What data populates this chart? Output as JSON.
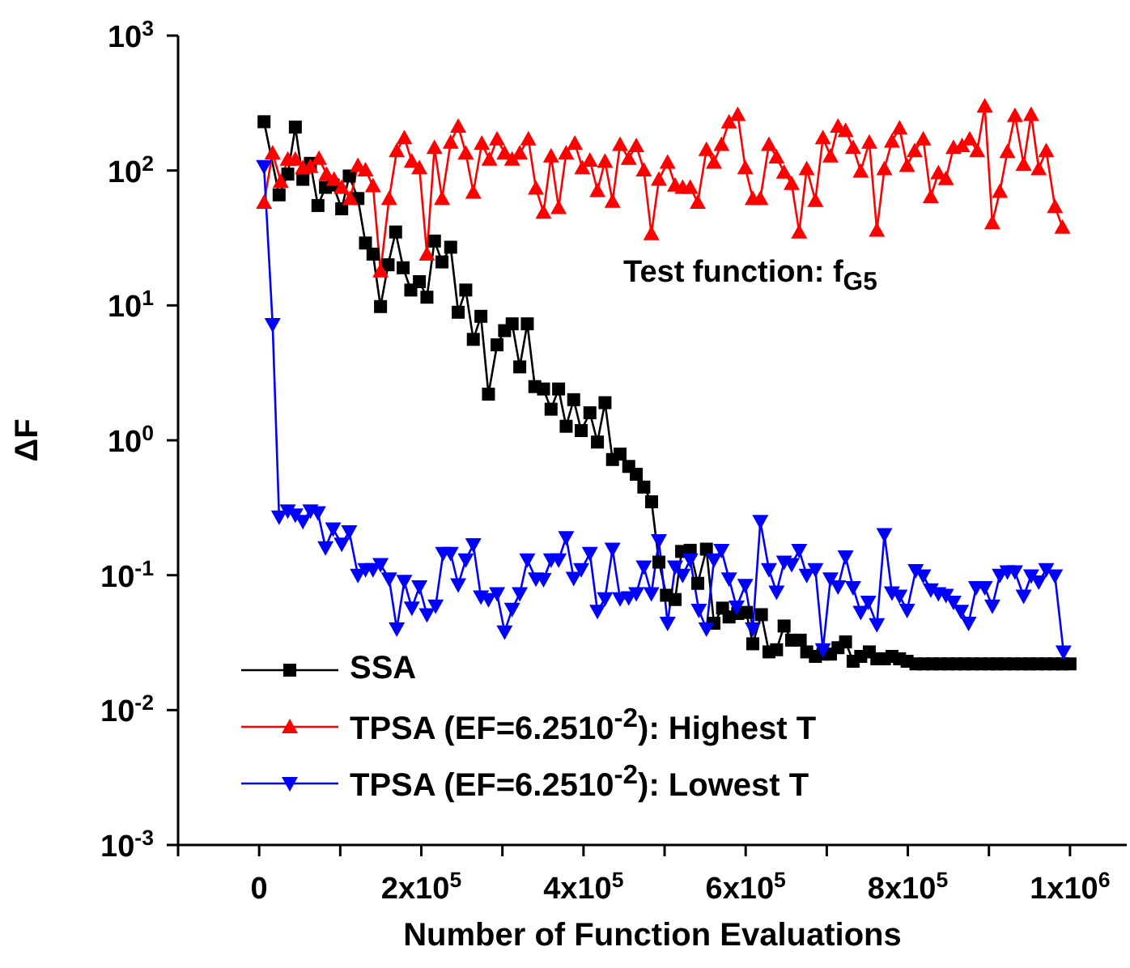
{
  "chart_data": {
    "type": "line",
    "xlabel": "Number of Function Evaluations",
    "ylabel": "ΔF",
    "annotations": [
      "Test function: f$_{G5}$"
    ],
    "log": "y",
    "legend": "bottom left",
    "xlim": [
      -100000,
      1070000
    ],
    "xticks": [
      {
        "value": -100000,
        "label": null
      },
      0,
      {
        "value": 100000,
        "label": null
      },
      {
        "value": 200000,
        "label": "2x10$^{5}$"
      },
      {
        "value": 300000,
        "label": null
      },
      {
        "value": 400000,
        "label": "4x10$^{5}$"
      },
      {
        "value": 500000,
        "label": null
      },
      {
        "value": 600000,
        "label": "6x10$^{5}$"
      },
      {
        "value": 700000,
        "label": null
      },
      {
        "value": 800000,
        "label": "8x10$^{5}$"
      },
      {
        "value": 900000,
        "label": null
      },
      {
        "value": 1000000,
        "label": "1x10$^{6}$"
      }
    ],
    "ylim": [
      0.001,
      1000
    ],
    "yticks": [
      {
        "value": 0.001,
        "label": "10$^{-3}$"
      },
      {
        "value": 0.01,
        "label": "10$^{-2}$"
      },
      {
        "value": 0.1,
        "label": "10$^{-1}$"
      },
      {
        "value": 1,
        "label": "10$^{0}$"
      },
      {
        "value": 10,
        "label": "10$^{1}$"
      },
      {
        "value": 100,
        "label": "10$^{2}$"
      },
      {
        "value": 1000,
        "label": "10$^{3}$"
      }
    ],
    "series": [
      {
        "name": "SSA",
        "color": "#000000",
        "marker": "square",
        "x": [
          6000,
          24600,
          35300,
          44600,
          53900,
          63200,
          72500,
          81800,
          91200,
          101800,
          111100,
          121800,
          131100,
          140400,
          149700,
          159000,
          168300,
          177600,
          187000,
          197600,
          206900,
          216200,
          225500,
          236200,
          245500,
          254800,
          264100,
          273500,
          282800,
          293400,
          302700,
          312000,
          321400,
          330700,
          340000,
          350700,
          360000,
          369300,
          378600,
          387900,
          397200,
          407900,
          417200,
          426500,
          435800,
          445100,
          455800,
          465100,
          474400,
          484000,
          493000,
          502300,
          513000,
          521000,
          531600,
          540900,
          551600,
          560900,
          571500,
          579500,
          590200,
          600800,
          608800,
          619400,
          628700,
          638100,
          647400,
          656700,
          667300,
          675300,
          686000,
          695300,
          704600,
          713900,
          723200,
          732500,
          741900,
          752500,
          761800,
          771100,
          780400,
          789800,
          799100,
          810000,
          820000,
          830000,
          840000,
          850000,
          860000,
          870000,
          880000,
          890000,
          900000,
          910000,
          920000,
          930000,
          940000,
          950000,
          960000,
          970000,
          980000,
          990000,
          1000000
        ],
        "values": [
          230,
          66,
          94,
          210,
          86,
          113,
          55,
          75,
          78,
          52,
          91,
          62,
          29,
          24,
          9.8,
          20,
          35,
          19,
          13,
          15,
          11.5,
          30,
          21,
          27,
          8.9,
          13,
          5.6,
          8.3,
          2.2,
          5.1,
          6.5,
          7.3,
          3.5,
          7.3,
          2.5,
          2.4,
          1.7,
          2.4,
          1.27,
          2.0,
          1.18,
          1.6,
          0.97,
          1.9,
          0.72,
          0.79,
          0.64,
          0.56,
          0.45,
          0.35,
          0.125,
          0.071,
          0.066,
          0.15,
          0.153,
          0.087,
          0.156,
          0.044,
          0.057,
          0.049,
          0.052,
          0.053,
          0.031,
          0.051,
          0.027,
          0.028,
          0.042,
          0.033,
          0.033,
          0.027,
          0.025,
          0.026,
          0.026,
          0.029,
          0.032,
          0.023,
          0.025,
          0.027,
          0.024,
          0.024,
          0.025,
          0.024,
          0.023,
          0.022,
          0.022,
          0.022,
          0.022,
          0.022,
          0.022,
          0.022,
          0.022,
          0.022,
          0.022,
          0.022,
          0.022,
          0.022,
          0.022,
          0.022,
          0.022,
          0.022,
          0.022,
          0.022,
          0.022
        ]
      },
      {
        "name": "TPSA (EF=6.2510$^{-2}$): Highest T",
        "color": "#ff0000",
        "marker": "triangle",
        "x": [
          6000,
          16600,
          26600,
          35300,
          44600,
          53900,
          63200,
          73800,
          83100,
          92400,
          101800,
          112400,
          121800,
          131100,
          140400,
          149700,
          160300,
          169700,
          179000,
          188300,
          197600,
          206900,
          216200,
          225500,
          236200,
          245500,
          254800,
          264100,
          274600,
          284000,
          293400,
          302700,
          312000,
          321400,
          332000,
          341300,
          350700,
          360000,
          369300,
          378600,
          389300,
          398600,
          407900,
          417200,
          426500,
          435800,
          445100,
          455800,
          465100,
          474400,
          483700,
          493000,
          503700,
          513000,
          522300,
          531600,
          540900,
          551600,
          560900,
          570200,
          579500,
          590200,
          599500,
          608800,
          618100,
          628700,
          638100,
          647400,
          656700,
          666000,
          675300,
          686000,
          695300,
          704600,
          713900,
          723200,
          732500,
          741900,
          752500,
          761800,
          771100,
          780400,
          789800,
          799100,
          808400,
          819000,
          828300,
          837700,
          847000,
          856300,
          866900,
          876300,
          885600,
          894900,
          904200,
          913500,
          922800,
          932100,
          942800,
          952100,
          961400,
          970700,
          981400,
          990700
        ],
        "values": [
          58,
          135,
          83,
          121,
          121,
          105,
          107,
          123,
          94,
          86,
          75,
          62,
          109,
          101,
          77,
          18,
          62,
          140,
          175,
          117,
          105,
          24,
          148,
          62,
          162,
          213,
          135,
          69,
          159,
          121,
          171,
          135,
          121,
          135,
          171,
          74,
          49,
          128,
          53,
          135,
          159,
          105,
          119,
          71,
          117,
          59,
          156,
          123,
          153,
          101,
          34,
          86,
          115,
          78,
          75,
          75,
          58,
          143,
          115,
          156,
          229,
          260,
          105,
          62,
          62,
          156,
          126,
          97,
          80,
          35,
          103,
          60,
          175,
          128,
          213,
          198,
          148,
          99,
          162,
          36,
          103,
          165,
          206,
          109,
          140,
          171,
          64,
          96,
          87,
          148,
          153,
          171,
          140,
          301,
          41,
          70,
          138,
          256,
          111,
          260,
          103,
          140,
          54,
          38
        ]
      },
      {
        "name": "TPSA (EF=6.2510$^{-2}$): Lowest T",
        "color": "#0000ff",
        "marker": "triangle-down",
        "x": [
          6000,
          16600,
          24600,
          35300,
          44600,
          53900,
          63200,
          72500,
          81800,
          91200,
          101800,
          111100,
          121800,
          131100,
          140400,
          149700,
          160300,
          169700,
          179000,
          188300,
          197600,
          206900,
          217600,
          226900,
          236200,
          245500,
          254800,
          264100,
          273500,
          282800,
          293400,
          302700,
          312000,
          321400,
          330700,
          341300,
          350700,
          360000,
          369300,
          378600,
          387900,
          397200,
          407900,
          417200,
          426500,
          435800,
          445100,
          455800,
          465100,
          474400,
          483700,
          493000,
          503700,
          513000,
          522300,
          531600,
          542300,
          551600,
          560900,
          570200,
          579500,
          588800,
          599500,
          608800,
          618100,
          628700,
          638100,
          647400,
          656700,
          666000,
          675300,
          686000,
          695300,
          704600,
          713900,
          723200,
          732500,
          741900,
          751200,
          761800,
          771100,
          780400,
          789800,
          799100,
          809700,
          819000,
          828300,
          837700,
          847000,
          856300,
          865600,
          874900,
          884200,
          894900,
          904200,
          913500,
          922800,
          932100,
          942800,
          952100,
          961400,
          970700,
          981400,
          992000
        ],
        "values": [
          107,
          7.2,
          0.27,
          0.3,
          0.28,
          0.25,
          0.3,
          0.29,
          0.16,
          0.22,
          0.17,
          0.21,
          0.1,
          0.11,
          0.11,
          0.12,
          0.094,
          0.04,
          0.09,
          0.057,
          0.082,
          0.051,
          0.059,
          0.145,
          0.145,
          0.085,
          0.13,
          0.168,
          0.069,
          0.066,
          0.073,
          0.038,
          0.056,
          0.073,
          0.13,
          0.094,
          0.093,
          0.13,
          0.13,
          0.19,
          0.095,
          0.11,
          0.145,
          0.054,
          0.067,
          0.156,
          0.067,
          0.068,
          0.073,
          0.115,
          0.073,
          0.18,
          0.044,
          0.115,
          0.1,
          0.13,
          0.055,
          0.04,
          0.13,
          0.153,
          0.094,
          0.058,
          0.084,
          0.04,
          0.25,
          0.11,
          0.075,
          0.125,
          0.12,
          0.153,
          0.1,
          0.11,
          0.028,
          0.094,
          0.082,
          0.137,
          0.081,
          0.053,
          0.063,
          0.043,
          0.2,
          0.074,
          0.07,
          0.055,
          0.108,
          0.099,
          0.078,
          0.073,
          0.071,
          0.063,
          0.054,
          0.044,
          0.081,
          0.081,
          0.059,
          0.1,
          0.106,
          0.106,
          0.07,
          0.099,
          0.089,
          0.11,
          0.099,
          0.027
        ]
      }
    ]
  }
}
